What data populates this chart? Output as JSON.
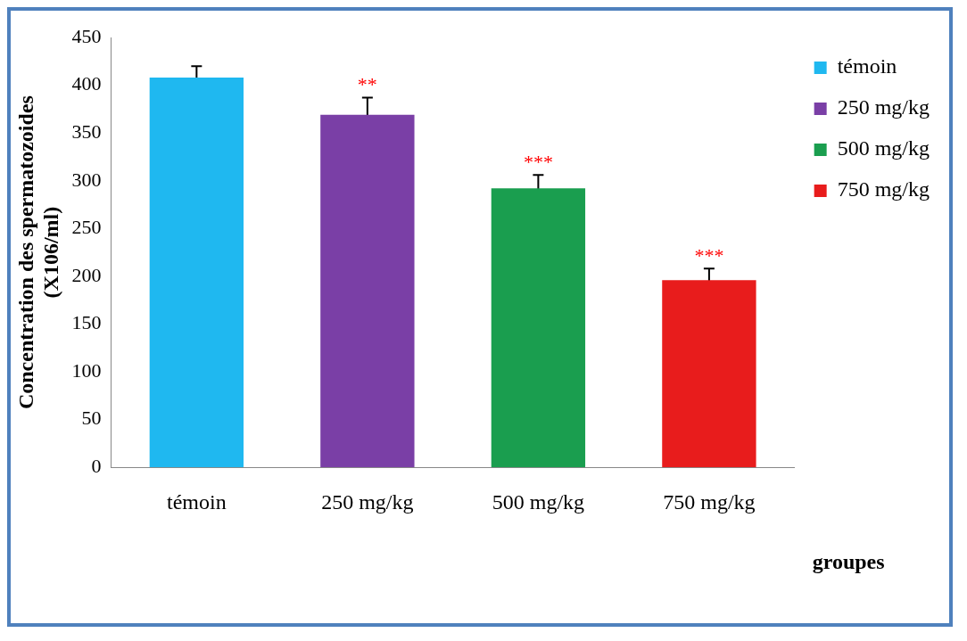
{
  "chart_data": {
    "type": "bar",
    "categories": [
      "témoin",
      "250 mg/kg",
      "500 mg/kg",
      "750 mg/kg"
    ],
    "series": [
      {
        "name": "témoin",
        "color": "#1fb8f0",
        "values": [
          408,
          null,
          null,
          null
        ],
        "errors": [
          12,
          null,
          null,
          null
        ]
      },
      {
        "name": "250 mg/kg",
        "color": "#7a3fa6",
        "values": [
          null,
          369,
          null,
          null
        ],
        "errors": [
          null,
          18,
          null,
          null
        ]
      },
      {
        "name": "500 mg/kg",
        "color": "#1a9e4f",
        "values": [
          null,
          null,
          292,
          null
        ],
        "errors": [
          null,
          null,
          14,
          null
        ]
      },
      {
        "name": "750 mg/kg",
        "color": "#e81c1c",
        "values": [
          null,
          null,
          null,
          196
        ],
        "errors": [
          null,
          null,
          null,
          12
        ]
      }
    ],
    "ylabel": "Concentration des spermatozoides\n(X106/ml)",
    "xlabel": "groupes",
    "ylim": [
      0,
      450
    ],
    "yticks": [
      0,
      50,
      100,
      150,
      200,
      250,
      300,
      350,
      400,
      450
    ],
    "grid": false,
    "legend": "right",
    "annotations": [
      {
        "text": "**",
        "x": "250 mg/kg",
        "y": 387
      },
      {
        "text": "***",
        "x": "500 mg/kg",
        "y": 306
      },
      {
        "text": "***",
        "x": "750 mg/kg",
        "y": 208
      }
    ]
  }
}
